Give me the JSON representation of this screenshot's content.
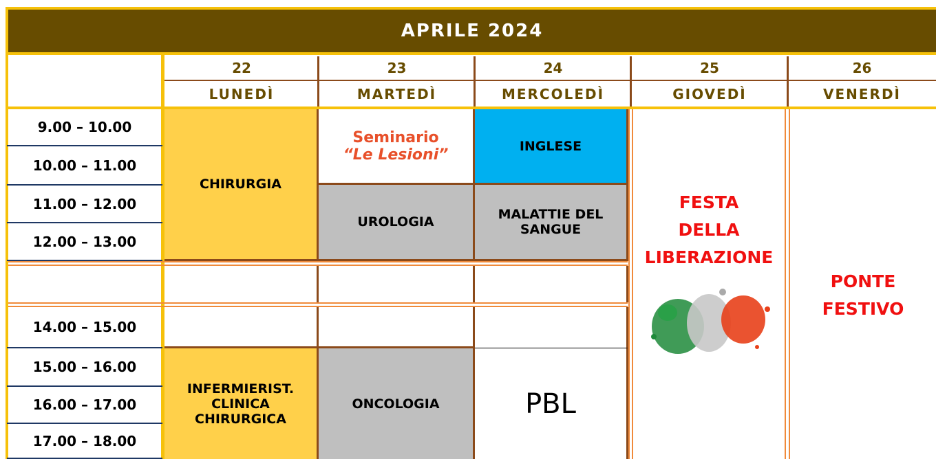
{
  "header": {
    "title": "APRILE 2024"
  },
  "days": [
    {
      "number": "22",
      "name": "LUNEDÌ"
    },
    {
      "number": "23",
      "name": "MARTEDÌ"
    },
    {
      "number": "24",
      "name": "MERCOLEDÌ"
    },
    {
      "number": "25",
      "name": "GIOVEDÌ"
    },
    {
      "number": "26",
      "name": "VENERDÌ"
    }
  ],
  "times": [
    "9.00 – 10.00",
    "10.00 – 11.00",
    "11.00 – 12.00",
    "12.00 – 13.00",
    "14.00 – 15.00",
    "15.00 – 16.00",
    "16.00 – 17.00",
    "17.00 – 18.00"
  ],
  "events": [
    {
      "label": "CHIRURGIA"
    },
    {
      "label": "Seminario",
      "subtitle": "“Le Lesioni”"
    },
    {
      "label": "INGLESE"
    },
    {
      "label": "UROLOGIA"
    },
    {
      "label": "MALATTIE DEL\nSANGUE"
    },
    {
      "label": "FESTA\nDELLA\nLIBERAZIONE"
    },
    {
      "label": "PONTE\nFESTIVO"
    },
    {
      "label": "INFERMIERIST.\nCLINICA\nCHIRURGICA"
    },
    {
      "label": "ONCOLOGIA"
    },
    {
      "label": "PBL"
    }
  ]
}
